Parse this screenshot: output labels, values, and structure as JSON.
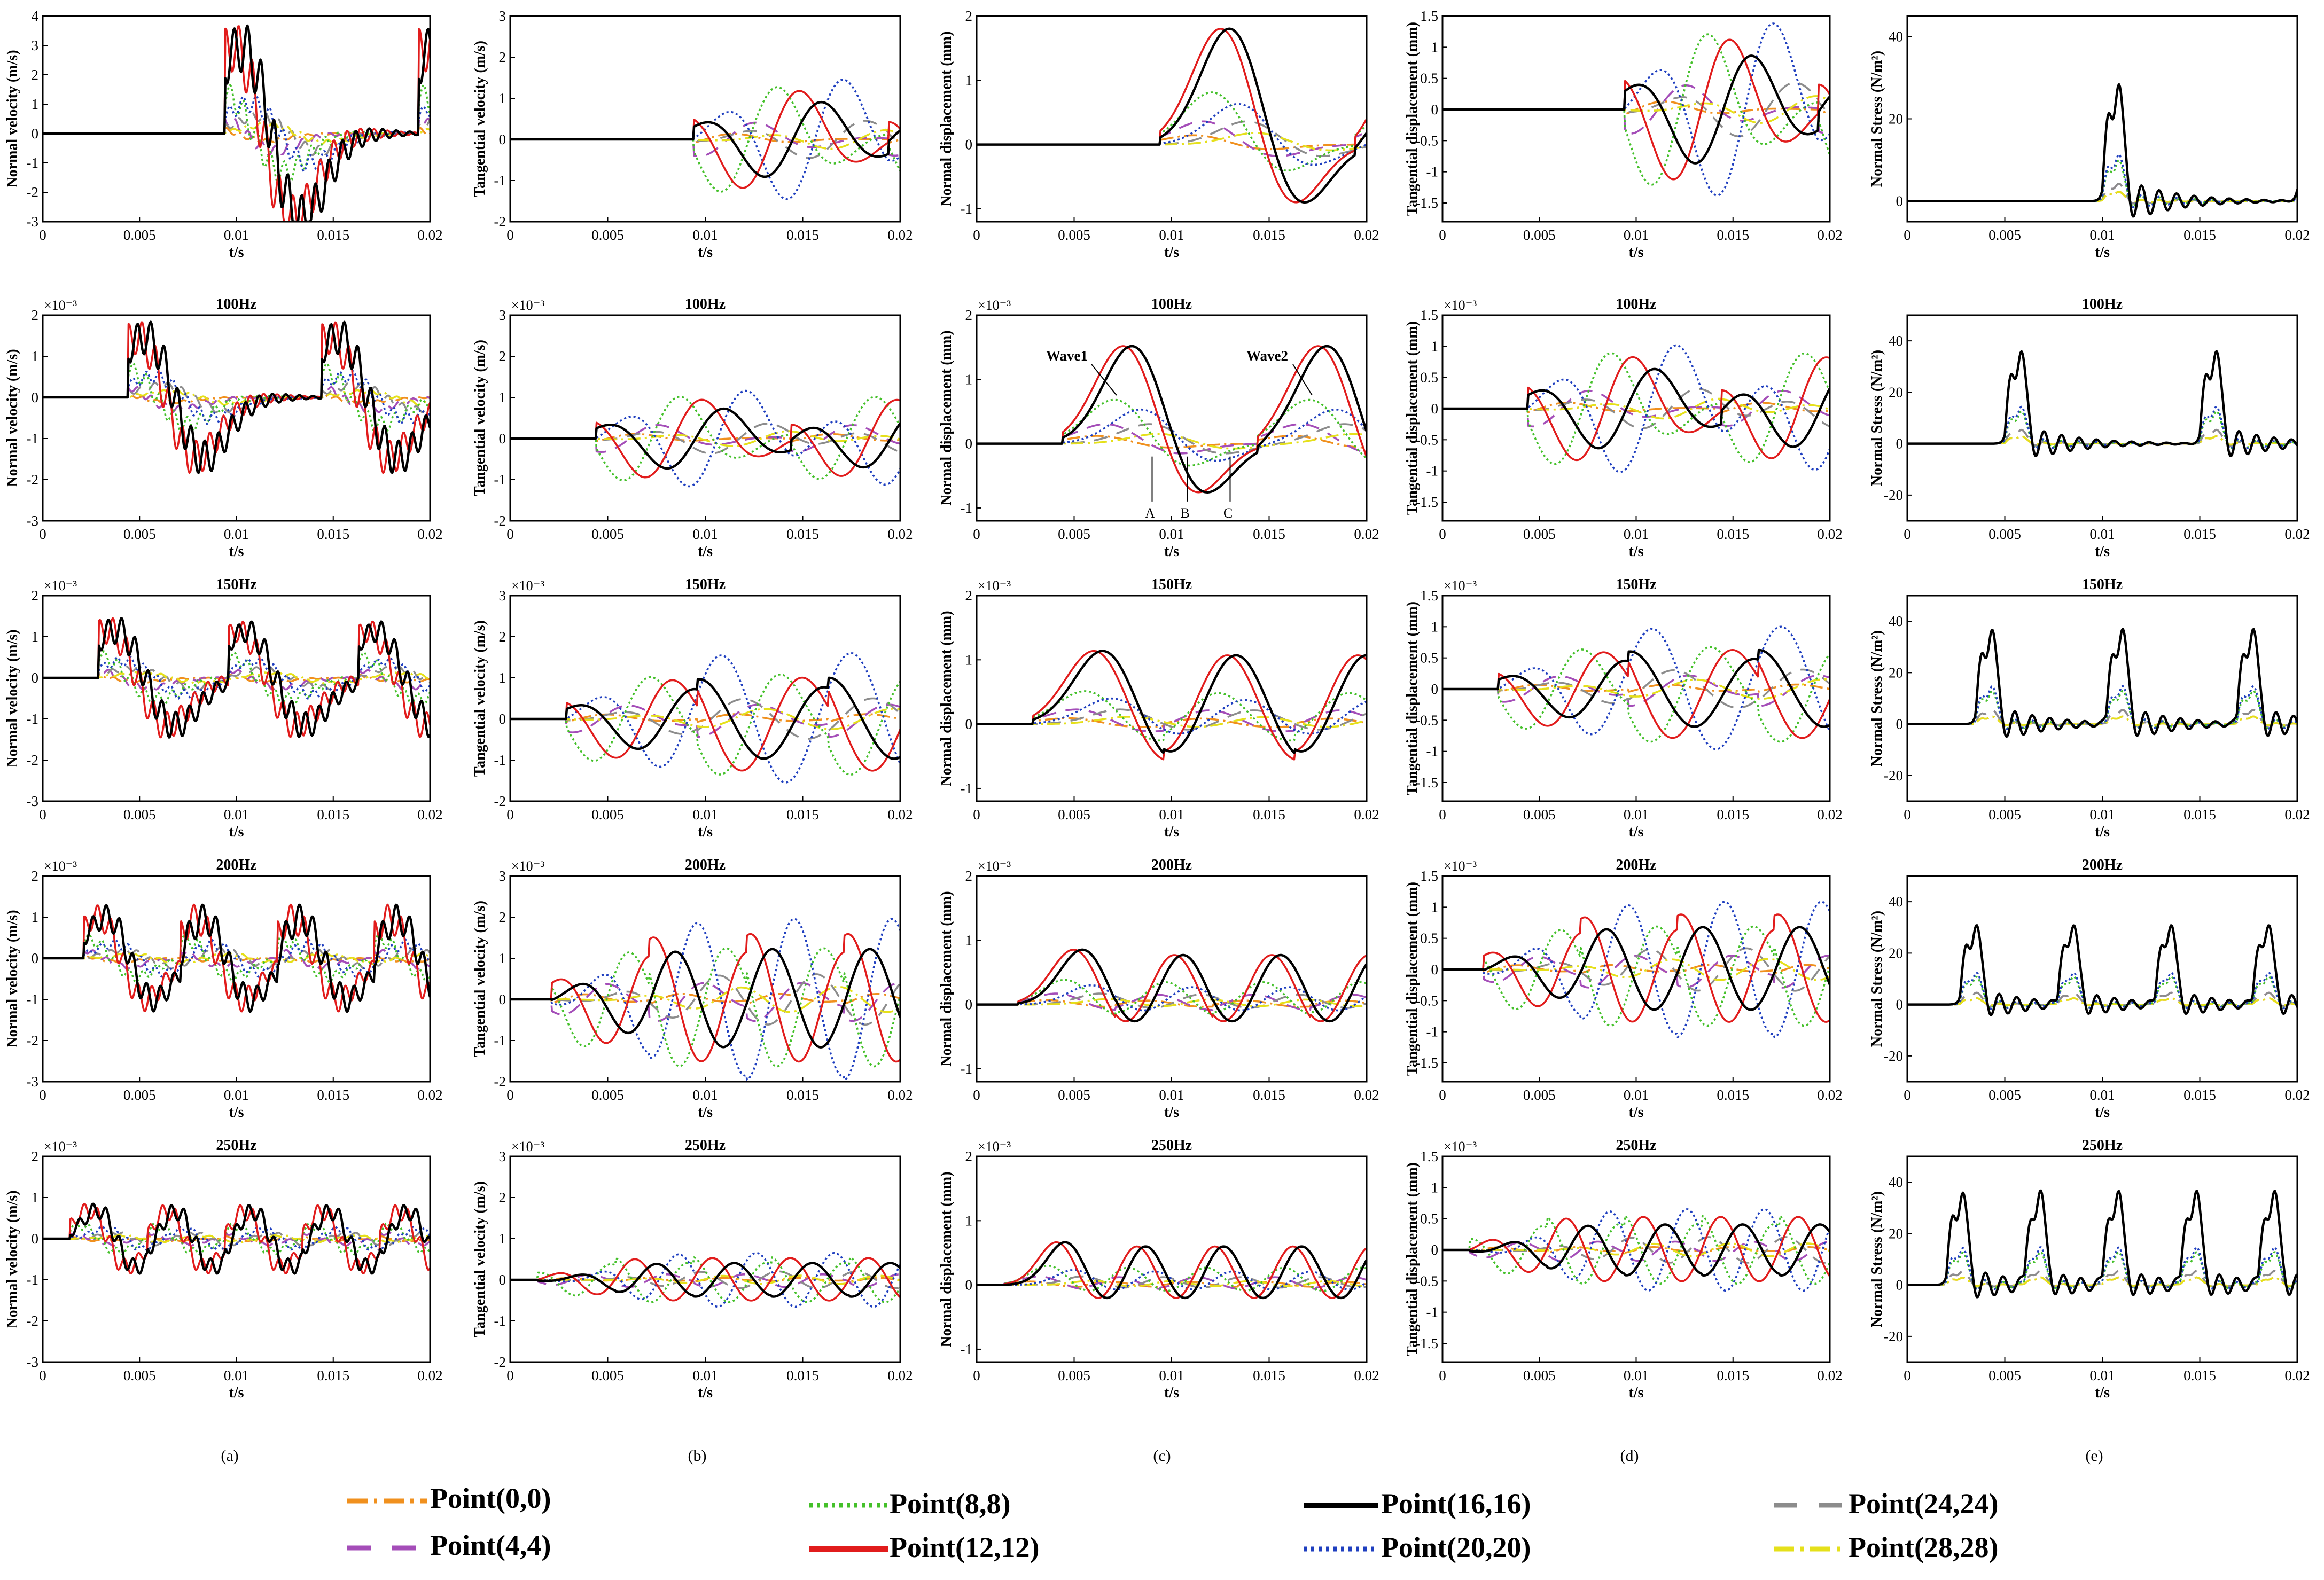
{
  "figure": {
    "column_labels": [
      "(a)",
      "(b)",
      "(c)",
      "(d)",
      "(e)"
    ],
    "ylabels": [
      "Normal velocity (m/s)",
      "Tangential velocity (m/s)",
      "Normal displacement (mm)",
      "Tangential displacement (mm)",
      "Normal Stress (N/m²)"
    ],
    "xlabel": "t/s",
    "x_ticks": [
      "0",
      "0.005",
      "0.01",
      "0.015",
      "0.02"
    ],
    "row_titles": [
      "",
      "100Hz",
      "150Hz",
      "200Hz",
      "250Hz"
    ],
    "exponent_label": "×10⁻³",
    "y_ticks": {
      "nv": [
        "-3",
        "-2",
        "-1",
        "0",
        "1",
        "2",
        "3",
        "4"
      ],
      "nv2": [
        "-3",
        "-2",
        "-1",
        "0",
        "1",
        "2"
      ],
      "tv": [
        "-2",
        "-1",
        "0",
        "1",
        "2",
        "3"
      ],
      "nd": [
        "-1",
        "0",
        "1",
        "2"
      ],
      "td": [
        "-1.5",
        "-1",
        "-0.5",
        "0",
        "0.5",
        "1",
        "1.5"
      ],
      "ns0": [
        "0",
        "20",
        "40"
      ],
      "ns": [
        "-20",
        "0",
        "20",
        "40"
      ]
    },
    "annotations": {
      "wave1": "Wave1",
      "wave2": "Wave2",
      "a": "A",
      "b": "B",
      "c": "C"
    }
  },
  "chart_data": {
    "type": "line",
    "x": {
      "label": "t/s",
      "range": [
        0,
        0.02
      ]
    },
    "panel_rows": [
      "",
      "100Hz",
      "150Hz",
      "200Hz",
      "250Hz"
    ],
    "panel_columns": [
      {
        "label": "(a)",
        "ylabel": "Normal velocity (m/s)",
        "ylim_row1": [
          -3,
          4
        ],
        "ylim_other_rows": [
          -3,
          2
        ],
        "exponent_other_rows": -3
      },
      {
        "label": "(b)",
        "ylabel": "Tangential velocity (m/s)",
        "ylim": [
          -2,
          3
        ],
        "exponent_other_rows": -3
      },
      {
        "label": "(c)",
        "ylabel": "Normal displacement (mm)",
        "ylim": [
          -1.2,
          2
        ],
        "exponent_other_rows": -3
      },
      {
        "label": "(d)",
        "ylabel": "Tangential displacement (mm)",
        "ylim": [
          -1.8,
          1.5
        ],
        "exponent_other_rows": -3
      },
      {
        "label": "(e)",
        "ylabel": "Normal Stress (N/m²)",
        "ylim_row1": [
          -5,
          45
        ],
        "ylim_other_rows": [
          -30,
          50
        ]
      }
    ],
    "series": [
      {
        "name": "Point(0,0)",
        "color": "#f0901e",
        "dash": "dash-dot",
        "relative_amplitude": 0.15
      },
      {
        "name": "Point(4,4)",
        "color": "#a44db8",
        "dash": "long-dash",
        "relative_amplitude": 0.3
      },
      {
        "name": "Point(8,8)",
        "color": "#44c02a",
        "dash": "dotted",
        "relative_amplitude": 0.55
      },
      {
        "name": "Point(12,12)",
        "color": "#e11c1c",
        "dash": "solid",
        "relative_amplitude": 0.95
      },
      {
        "name": "Point(16,16)",
        "color": "#000000",
        "dash": "solid",
        "relative_amplitude": 1.0
      },
      {
        "name": "Point(20,20)",
        "color": "#1f3fbf",
        "dash": "dotted",
        "relative_amplitude": 0.5
      },
      {
        "name": "Point(24,24)",
        "color": "#8c8c8c",
        "dash": "long-dash",
        "relative_amplitude": 0.3
      },
      {
        "name": "Point(28,28)",
        "color": "#e5e01a",
        "dash": "dash-dot",
        "relative_amplitude": 0.15
      }
    ],
    "excitation": [
      {
        "row": "",
        "onset": 0.01,
        "period": 0.01
      },
      {
        "row": "100Hz",
        "onset": 0.005,
        "period": 0.01
      },
      {
        "row": "150Hz",
        "onset": 0.0035,
        "period": 0.0067
      },
      {
        "row": "200Hz",
        "onset": 0.0027,
        "period": 0.005
      },
      {
        "row": "250Hz",
        "onset": 0.002,
        "period": 0.004
      }
    ],
    "peak_values_black": {
      "normal_velocity": [
        3.8,
        0.0019,
        0.0015,
        0.0013,
        0.0009
      ],
      "tangential_velocity": [
        1.0,
        0.0008,
        0.0008,
        0.0009,
        0.0003
      ],
      "normal_displacement": [
        1.9,
        0.0016,
        0.0012,
        0.0009,
        0.0007
      ],
      "tangential_displacement": [
        0.95,
        0.0007,
        0.0005,
        0.0005,
        0.0003
      ],
      "normal_stress": [
        34,
        43,
        44,
        37,
        43
      ]
    },
    "legend": {
      "position": "bottom",
      "columns": 4
    }
  }
}
